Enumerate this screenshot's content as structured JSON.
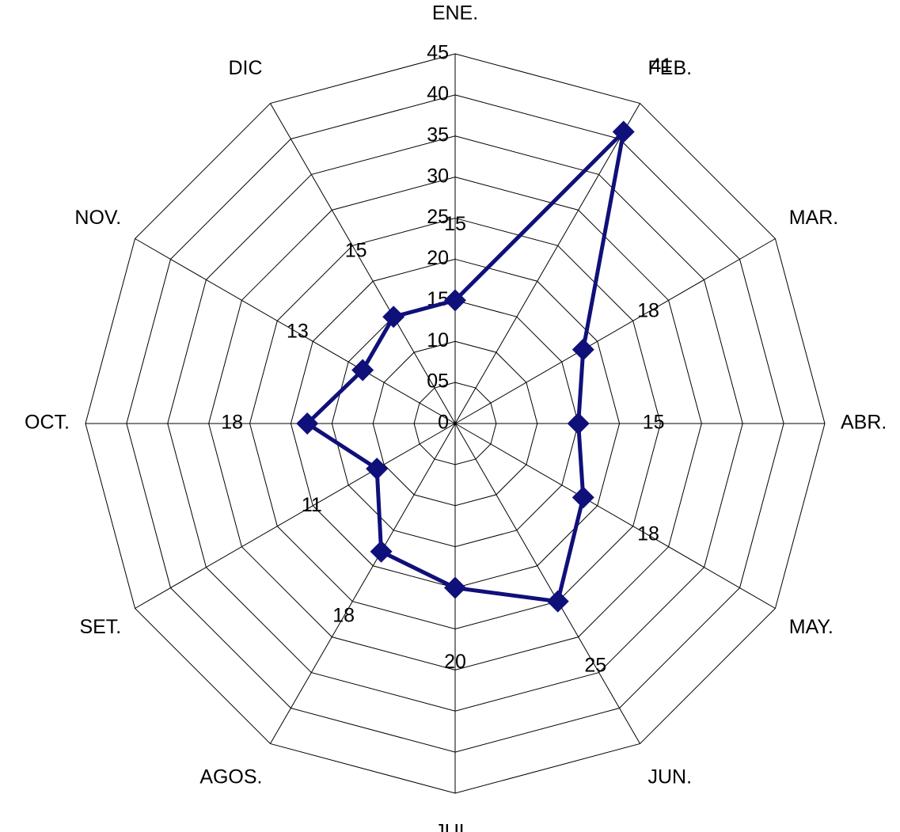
{
  "chart_data": {
    "type": "radar",
    "categories": [
      "ENE.",
      "FEB.",
      "MAR.",
      "ABR.",
      "MAY.",
      "JUN.",
      "JUL.",
      "AGOS.",
      "SET.",
      "OCT.",
      "NOV.",
      "DIC"
    ],
    "values": [
      15,
      41,
      18,
      15,
      18,
      25,
      20,
      18,
      11,
      18,
      13,
      15
    ],
    "color": "#10107a",
    "ylim": [
      0,
      45
    ],
    "yticks": [
      0,
      {
        "value": 5,
        "label": "05"
      },
      10,
      15,
      20,
      25,
      30,
      35,
      40,
      45
    ],
    "grid": true
  }
}
